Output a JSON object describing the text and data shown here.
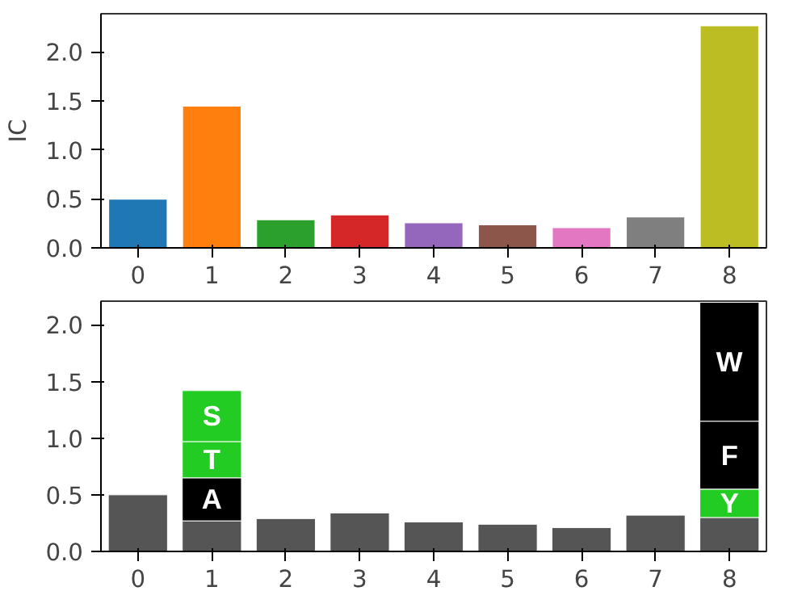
{
  "chart_data": [
    {
      "type": "bar",
      "ylabel": "IC",
      "categories": [
        "0",
        "1",
        "2",
        "3",
        "4",
        "5",
        "6",
        "7",
        "8"
      ],
      "values": [
        0.5,
        1.45,
        0.29,
        0.34,
        0.26,
        0.24,
        0.21,
        0.32,
        2.27
      ],
      "colors": [
        "#1f77b4",
        "#ff7f0e",
        "#2ca02c",
        "#d62728",
        "#9467bd",
        "#8c564b",
        "#e377c2",
        "#7f7f7f",
        "#bcbd22"
      ],
      "ylim": [
        0,
        2.39
      ],
      "yticks": [
        {
          "value": 0,
          "label": "0.0"
        },
        {
          "value": 0.5,
          "label": "0.5"
        },
        {
          "value": 1,
          "label": "1.0"
        },
        {
          "value": 1.5,
          "label": "1.5"
        },
        {
          "value": 2,
          "label": "2.0"
        }
      ],
      "grid": false
    },
    {
      "type": "bar",
      "stacked": true,
      "categories": [
        "0",
        "1",
        "2",
        "3",
        "4",
        "5",
        "6",
        "7",
        "8"
      ],
      "ylim": [
        0,
        2.21
      ],
      "yticks": [
        {
          "value": 0,
          "label": "0.0"
        },
        {
          "value": 0.5,
          "label": "0.5"
        },
        {
          "value": 1,
          "label": "1.0"
        },
        {
          "value": 1.5,
          "label": "1.5"
        },
        {
          "value": 2,
          "label": "2.0"
        }
      ],
      "grid": false,
      "series": [
        {
          "color": "#555555",
          "values": [
            0.5,
            0.27,
            0.29,
            0.34,
            0.26,
            0.24,
            0.21,
            0.32,
            0.3
          ]
        },
        {
          "name": "A",
          "color": "#000000",
          "values": [
            null,
            0.38,
            null,
            null,
            null,
            null,
            null,
            null,
            null
          ]
        },
        {
          "name": "T",
          "color": "#22cc22",
          "values": [
            null,
            0.32,
            null,
            null,
            null,
            null,
            null,
            null,
            null
          ]
        },
        {
          "name": "S",
          "color": "#22cc22",
          "values": [
            null,
            0.45,
            null,
            null,
            null,
            null,
            null,
            null,
            null
          ]
        },
        {
          "name": "Y",
          "color": "#22cc22",
          "values": [
            null,
            null,
            null,
            null,
            null,
            null,
            null,
            null,
            0.25
          ]
        },
        {
          "name": "F",
          "color": "#000000",
          "values": [
            null,
            null,
            null,
            null,
            null,
            null,
            null,
            null,
            0.6
          ]
        },
        {
          "name": "W",
          "color": "#000000",
          "values": [
            null,
            null,
            null,
            null,
            null,
            null,
            null,
            null,
            1.05
          ]
        }
      ]
    }
  ]
}
